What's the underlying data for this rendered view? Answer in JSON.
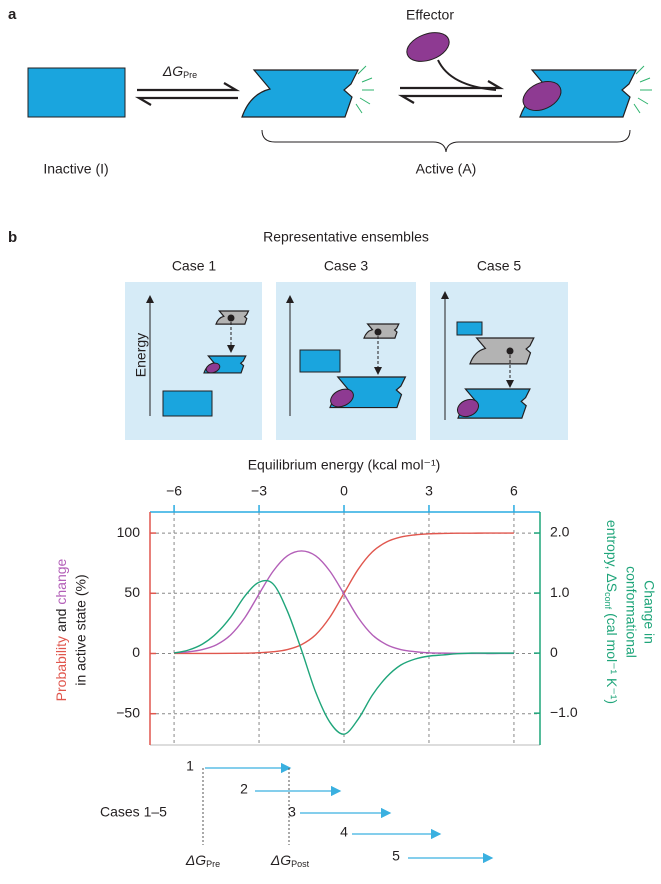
{
  "panel_a": {
    "label": "a",
    "delta_g": {
      "symbol": "ΔG",
      "sub": "Pre"
    },
    "effector": "Effector",
    "inactive": "Inactive (I)",
    "active": "Active (A)"
  },
  "panel_b": {
    "label": "b",
    "ensembles_title": "Representative ensembles",
    "cases": [
      "Case 1",
      "Case 3",
      "Case 5"
    ],
    "energy": "Energy",
    "case_arrows": {
      "label": "Cases 1–5",
      "numbers": [
        "1",
        "2",
        "3",
        "4",
        "5"
      ]
    },
    "markers": [
      {
        "symbol": "ΔG",
        "sub": "Pre"
      },
      {
        "symbol": "ΔG",
        "sub": "Post"
      }
    ]
  },
  "chart_data": {
    "type": "line",
    "xlabel": "Equilibrium energy (kcal mol⁻¹)",
    "ylabel": {
      "joiner": "and",
      "line2": "in active state (%)"
    },
    "y2label": {
      "lines": [
        "Change in",
        "conformational"
      ],
      "text": "entropy, ΔS",
      "sub": "conf",
      "units": "(cal mol⁻¹ K⁻¹)"
    },
    "x": [
      -6,
      -5.5,
      -5,
      -4.5,
      -4,
      -3.5,
      -3,
      -2.5,
      -2,
      -1.5,
      -1,
      -0.5,
      0,
      0.5,
      1,
      1.5,
      2,
      2.5,
      3,
      3.5,
      4,
      4.5,
      5,
      5.5,
      6
    ],
    "xlim": [
      -6.85,
      6.92
    ],
    "xticks": [
      {
        "value": -6,
        "label": "−6"
      },
      {
        "value": -3,
        "label": "−3"
      },
      0,
      3,
      6
    ],
    "ylim": [
      -76,
      117.5
    ],
    "yticks": [
      100,
      50,
      0,
      {
        "value": -50,
        "label": "−50"
      }
    ],
    "y2lim": [
      -1.53,
      2.35
    ],
    "y2ticks": [
      {
        "value": 2,
        "label": "2.0"
      },
      {
        "value": 1,
        "label": "1.0"
      },
      0,
      {
        "value": -1,
        "label": "−1.0"
      }
    ],
    "grid": true,
    "series": [
      {
        "name": "Probability",
        "color": "#e0574e",
        "values": [
          0,
          0.01,
          0.02,
          0.05,
          0.12,
          0.27,
          0.63,
          1.45,
          3.3,
          7.4,
          15.6,
          30.1,
          50,
          69.9,
          84.4,
          92.6,
          96.7,
          98.5,
          99.4,
          99.7,
          99.9,
          99.9,
          100,
          100,
          100
        ]
      },
      {
        "name": "change",
        "color": "#b35fb8",
        "values": [
          0.6,
          1.4,
          3.3,
          7.3,
          15.5,
          29.8,
          49.4,
          68.4,
          81.1,
          85.2,
          81.1,
          68.4,
          49.4,
          29.8,
          15.5,
          7.4,
          3.3,
          1.5,
          0.6,
          0.3,
          0.1,
          0.05,
          0,
          0,
          0
        ]
      },
      {
        "color": "#1fa57a",
        "axis": "y2",
        "values": [
          0,
          0.05,
          0.15,
          0.33,
          0.6,
          0.95,
          1.18,
          1.15,
          0.7,
          0.05,
          -0.65,
          -1.15,
          -1.35,
          -1.1,
          -0.7,
          -0.4,
          -0.2,
          -0.1,
          -0.05,
          -0.03,
          -0.01,
          0,
          0,
          0,
          0
        ]
      }
    ]
  }
}
